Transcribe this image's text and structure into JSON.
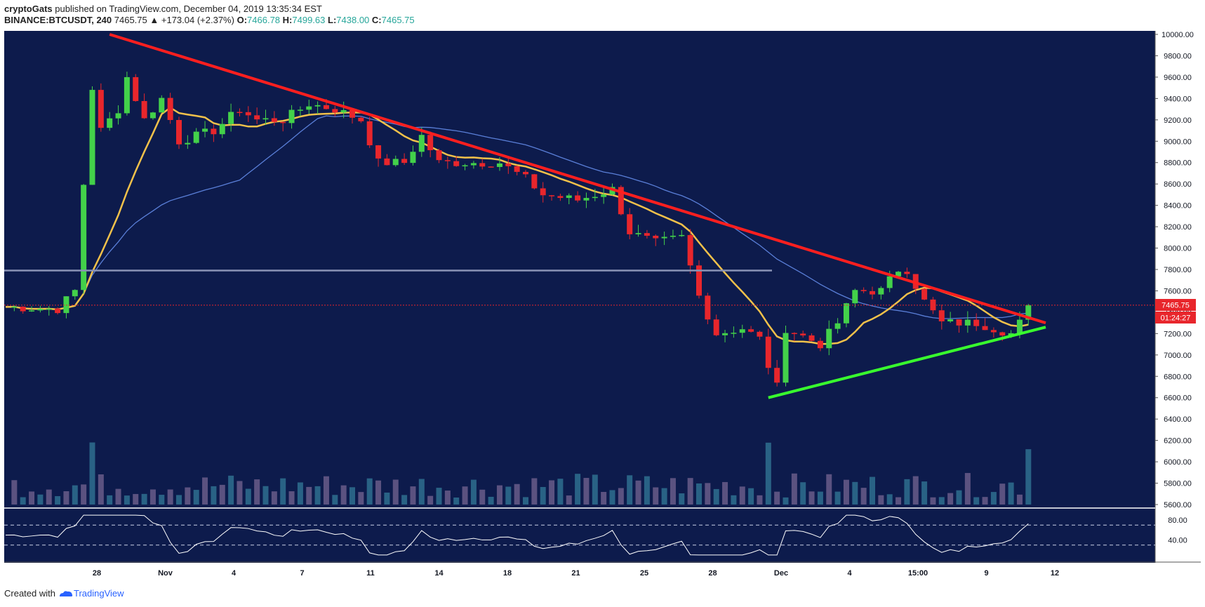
{
  "header": {
    "author": "cryptoGats",
    "published_text": "published on TradingView.com, December 04, 2019 13:35:34 EST",
    "symbol": "BINANCE:BTCUSDT, 240",
    "last": "7465.75",
    "change": "▲ +173.04 (+2.37%)",
    "o_label": "O:",
    "o": "7466.78",
    "h_label": "H:",
    "h": "7499.63",
    "l_label": "L:",
    "l": "7438.00",
    "c_label": "C:",
    "c": "7465.75"
  },
  "footer": {
    "created_with": "Created with",
    "brand": "TradingView"
  },
  "price_label": {
    "price": "7465.75",
    "countdown": "01:24:27"
  },
  "colors": {
    "background": "#0d1b4c",
    "up": "#43d14a",
    "down": "#e8262c",
    "trend_down": "#ff1f1f",
    "trend_up": "#39ff2e",
    "ma_fast": "#f2c14a",
    "ma_slow": "#5a7fd8"
  },
  "chart_data": {
    "type": "candlestick",
    "symbol": "BINANCE:BTCUSDT",
    "interval": "240",
    "ylim": [
      5600,
      10000
    ],
    "y_ticks": [
      "10000.00",
      "9800.00",
      "9600.00",
      "9400.00",
      "9200.00",
      "9000.00",
      "8800.00",
      "8600.00",
      "8400.00",
      "8200.00",
      "8000.00",
      "7800.00",
      "7600.00",
      "7400.00",
      "7200.00",
      "7000.00",
      "6800.00",
      "6600.00",
      "6400.00",
      "6200.00",
      "6000.00",
      "5800.00",
      "5600.00"
    ],
    "x_ticks": [
      "28",
      "Nov",
      "4",
      "7",
      "11",
      "14",
      "18",
      "21",
      "25",
      "28",
      "Dec",
      "4",
      "15:00",
      "9",
      "12"
    ],
    "rsi_ticks": [
      "80.00",
      "40.00"
    ],
    "rsi_levels": [
      70,
      30
    ],
    "price_path": [
      [
        0,
        7450
      ],
      [
        6,
        7430
      ],
      [
        8,
        7600
      ],
      [
        9,
        8600
      ],
      [
        10,
        9500
      ],
      [
        11,
        9100
      ],
      [
        13,
        9300
      ],
      [
        14,
        9600
      ],
      [
        16,
        9200
      ],
      [
        18,
        9400
      ],
      [
        20,
        9000
      ],
      [
        24,
        9100
      ],
      [
        27,
        9300
      ],
      [
        29,
        9200
      ],
      [
        32,
        9200
      ],
      [
        35,
        9350
      ],
      [
        38,
        9300
      ],
      [
        41,
        9200
      ],
      [
        43,
        8800
      ],
      [
        46,
        8800
      ],
      [
        48,
        9050
      ],
      [
        50,
        8800
      ],
      [
        54,
        8800
      ],
      [
        57,
        8800
      ],
      [
        60,
        8650
      ],
      [
        62,
        8500
      ],
      [
        66,
        8450
      ],
      [
        70,
        8550
      ],
      [
        72,
        8150
      ],
      [
        75,
        8050
      ],
      [
        78,
        8100
      ],
      [
        80,
        7550
      ],
      [
        82,
        7200
      ],
      [
        85,
        7250
      ],
      [
        87,
        7150
      ],
      [
        88,
        6900
      ],
      [
        89,
        6700
      ],
      [
        90,
        7250
      ],
      [
        94,
        7100
      ],
      [
        96,
        7300
      ],
      [
        98,
        7600
      ],
      [
        101,
        7600
      ],
      [
        103,
        7800
      ],
      [
        104,
        7800
      ],
      [
        106,
        7500
      ],
      [
        108,
        7300
      ],
      [
        112,
        7300
      ],
      [
        114,
        7250
      ],
      [
        116,
        7200
      ],
      [
        117,
        7300
      ],
      [
        118,
        7470
      ]
    ],
    "trendline_resistance": [
      {
        "x": 12,
        "y": 10000
      },
      {
        "x": 120,
        "y": 7300
      }
    ],
    "trendline_support": [
      {
        "x": 88,
        "y": 6600
      },
      {
        "x": 120,
        "y": 7260
      }
    ],
    "horizontal_level": 7790,
    "last_price": 7465.75
  }
}
